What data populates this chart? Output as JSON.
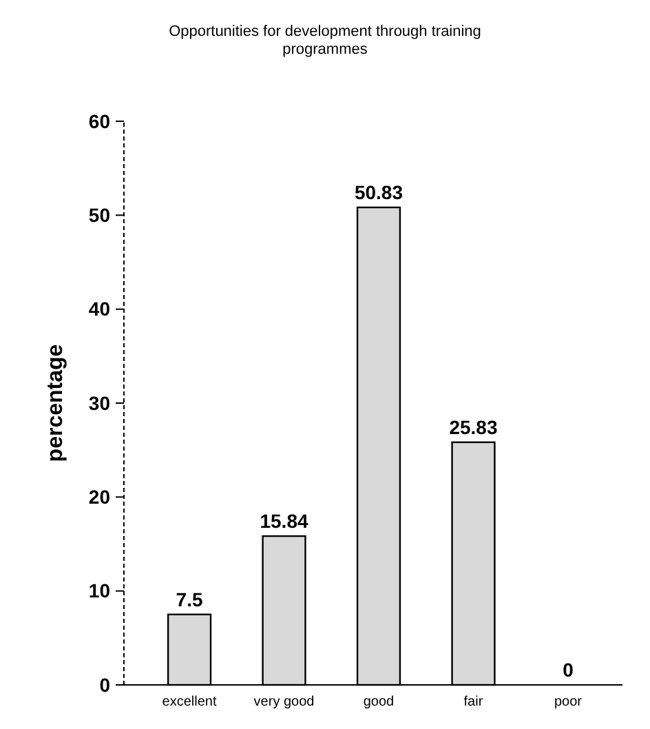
{
  "chart_data": {
    "type": "bar",
    "title": "Opportunities for development through training programmes",
    "ylabel": "percentage",
    "categories": [
      "excellent",
      "very good",
      "good",
      "fair",
      "poor"
    ],
    "values": [
      7.5,
      15.84,
      50.83,
      25.83,
      0
    ],
    "color": "#d9d9d9",
    "ylim": [
      0,
      60
    ],
    "yticks": [
      0,
      10,
      20,
      30,
      40,
      50,
      60
    ],
    "data_labels": true,
    "grid": false
  }
}
